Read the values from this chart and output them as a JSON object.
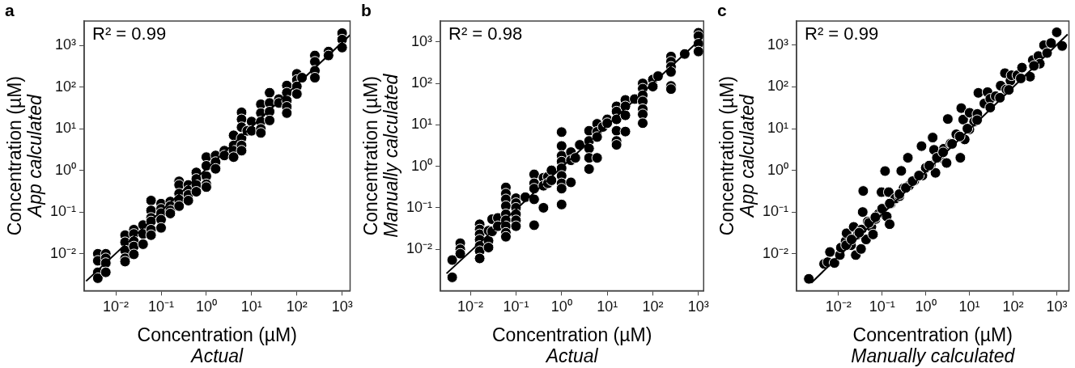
{
  "chart_data": [
    {
      "type": "scatter",
      "title": "a",
      "xlabel": "Concentration (µM)\nActual",
      "ylabel": "Concentration (µM)\nApp calculated",
      "annotations": [
        "R² = 0.99"
      ],
      "log": "xy",
      "legend": false,
      "xlim": [
        0.002,
        1500
      ],
      "ylim": [
        0.0013,
        3900
      ],
      "xticks": [
        {
          "value": 0.01,
          "label": "10⁻²"
        },
        {
          "value": 0.1,
          "label": "10⁻¹"
        },
        {
          "value": 1,
          "label": "10⁰"
        },
        {
          "value": 10,
          "label": "10¹"
        },
        {
          "value": 100,
          "label": "10²"
        },
        {
          "value": 1000,
          "label": "10³"
        }
      ],
      "yticks": [
        {
          "value": 0.01,
          "label": "10⁻²"
        },
        {
          "value": 0.1,
          "label": "10⁻¹"
        },
        {
          "value": 1,
          "label": "10⁰"
        },
        {
          "value": 10,
          "label": "10¹"
        },
        {
          "value": 100,
          "label": "10²"
        },
        {
          "value": 1000,
          "label": "10³"
        }
      ],
      "series": [
        {
          "marker": "circle",
          "color": "#000000",
          "x": [
            0.004,
            0.004,
            0.004,
            0.004,
            0.006,
            0.006,
            0.006,
            0.006,
            0.016,
            0.016,
            0.016,
            0.016,
            0.016,
            0.025,
            0.025,
            0.025,
            0.025,
            0.025,
            0.04,
            0.04,
            0.04,
            0.06,
            0.06,
            0.06,
            0.06,
            0.06,
            0.06,
            0.1,
            0.1,
            0.1,
            0.1,
            0.1,
            0.16,
            0.16,
            0.16,
            0.16,
            0.25,
            0.25,
            0.25,
            0.25,
            0.25,
            0.4,
            0.4,
            0.4,
            0.4,
            0.6,
            0.6,
            0.6,
            0.6,
            1,
            1,
            1,
            1,
            1,
            1.6,
            1.6,
            1.6,
            2.5,
            2.5,
            4,
            4,
            4,
            4,
            6,
            6,
            6,
            6,
            6,
            6,
            8,
            10,
            10,
            16,
            16,
            16,
            16,
            16,
            25,
            25,
            25,
            25,
            40,
            40,
            60,
            60,
            60,
            60,
            60,
            100,
            100,
            100,
            100,
            130,
            250,
            250,
            250,
            250,
            500,
            500,
            1000,
            1000,
            1000
          ],
          "values": [
            0.01,
            0.0068,
            0.0036,
            0.0026,
            0.01,
            0.0078,
            0.006,
            0.0036,
            0.028,
            0.019,
            0.012,
            0.0078,
            0.0065,
            0.038,
            0.03,
            0.02,
            0.015,
            0.0097,
            0.049,
            0.03,
            0.017,
            0.19,
            0.11,
            0.073,
            0.06,
            0.038,
            0.028,
            0.16,
            0.12,
            0.095,
            0.066,
            0.042,
            0.18,
            0.14,
            0.11,
            0.093,
            0.55,
            0.45,
            0.28,
            0.2,
            0.14,
            0.45,
            0.33,
            0.26,
            0.19,
            0.9,
            0.63,
            0.45,
            0.31,
            2.1,
            1.3,
            0.73,
            0.47,
            0.4,
            2.3,
            1.6,
            1.1,
            3,
            2.3,
            7,
            4,
            3,
            2.1,
            25,
            17,
            11,
            6,
            4,
            3,
            9,
            15,
            9,
            39,
            24,
            15,
            10,
            8,
            74,
            42,
            26,
            16,
            52,
            42,
            110,
            74,
            48,
            34,
            24,
            210,
            150,
            105,
            69,
            170,
            580,
            410,
            250,
            170,
            720,
            580,
            2000,
            1400,
            900
          ]
        },
        {
          "type": "line",
          "color": "#000000",
          "x": [
            0.0022,
            1500
          ],
          "values": [
            0.0022,
            1800
          ]
        }
      ]
    },
    {
      "type": "scatter",
      "title": "b",
      "xlabel": "Concentration (µM)\nActual",
      "ylabel": "Concentration (µM)\nManually calculated",
      "annotations": [
        "R² = 0.98"
      ],
      "log": "xy",
      "legend": false,
      "xlim": [
        0.0022,
        1300
      ],
      "ylim": [
        0.001,
        3200
      ],
      "xticks": [
        {
          "value": 0.01,
          "label": "10⁻²"
        },
        {
          "value": 0.1,
          "label": "10⁻¹"
        },
        {
          "value": 1,
          "label": "10⁰"
        },
        {
          "value": 10,
          "label": "10¹"
        },
        {
          "value": 100,
          "label": "10²"
        },
        {
          "value": 1000,
          "label": "10³"
        }
      ],
      "yticks": [
        {
          "value": 0.01,
          "label": "10⁻²"
        },
        {
          "value": 0.1,
          "label": "10⁻¹"
        },
        {
          "value": 1,
          "label": "10⁰"
        },
        {
          "value": 10,
          "label": "10¹"
        },
        {
          "value": 100,
          "label": "10²"
        },
        {
          "value": 1000,
          "label": "10³"
        }
      ],
      "series": [
        {
          "marker": "circle",
          "color": "#000000",
          "x": [
            0.004,
            0.004,
            0.006,
            0.006,
            0.006,
            0.016,
            0.016,
            0.016,
            0.016,
            0.016,
            0.016,
            0.016,
            0.025,
            0.025,
            0.025,
            0.03,
            0.03,
            0.04,
            0.04,
            0.06,
            0.06,
            0.06,
            0.06,
            0.06,
            0.06,
            0.06,
            0.06,
            0.06,
            0.1,
            0.1,
            0.1,
            0.1,
            0.1,
            0.1,
            0.16,
            0.25,
            0.25,
            0.25,
            0.25,
            0.25,
            0.4,
            0.4,
            0.4,
            0.5,
            0.5,
            0.6,
            0.6,
            1,
            1,
            1,
            1,
            1,
            1,
            1,
            1,
            1,
            1.6,
            1.6,
            1.6,
            2,
            2.5,
            4,
            4,
            4,
            4,
            4,
            6,
            6,
            6,
            6,
            8,
            10,
            10,
            16,
            16,
            16,
            16,
            16,
            16,
            25,
            25,
            25,
            25,
            40,
            60,
            60,
            60,
            60,
            60,
            60,
            60,
            100,
            100,
            130,
            250,
            250,
            250,
            250,
            250,
            250,
            500,
            1000,
            1000,
            1000,
            1000
          ],
          "values": [
            0.0055,
            0.0021,
            0.014,
            0.01,
            0.0078,
            0.04,
            0.03,
            0.023,
            0.017,
            0.012,
            0.009,
            0.006,
            0.028,
            0.016,
            0.011,
            0.053,
            0.027,
            0.057,
            0.036,
            0.31,
            0.22,
            0.16,
            0.11,
            0.07,
            0.05,
            0.036,
            0.025,
            0.02,
            0.17,
            0.13,
            0.1,
            0.07,
            0.05,
            0.036,
            0.18,
            0.64,
            0.39,
            0.29,
            0.16,
            0.038,
            0.53,
            0.34,
            0.1,
            0.56,
            0.39,
            0.8,
            0.46,
            6.7,
            3.1,
            1.8,
            1.3,
            0.9,
            0.59,
            0.39,
            0.29,
            0.12,
            2.2,
            1.4,
            0.41,
            1.6,
            3.3,
            7.2,
            4.1,
            2.7,
            1.6,
            0.86,
            10.6,
            6.8,
            5.1,
            1.6,
            8.9,
            13.6,
            11,
            28,
            21,
            13.6,
            7.2,
            4.1,
            3.3,
            40,
            28,
            17,
            6.9,
            42,
            100,
            75,
            52,
            37,
            24,
            18,
            11,
            124,
            84,
            150,
            445,
            335,
            252,
            190,
            87,
            73,
            513,
            1670,
            1390,
            905,
            590
          ]
        },
        {
          "type": "line",
          "color": "#000000",
          "x": [
            0.003,
            1230
          ],
          "values": [
            0.0026,
            1290
          ]
        }
      ]
    },
    {
      "type": "scatter",
      "title": "c",
      "xlabel": "Concentration (µM)\nManually calculated",
      "ylabel": "Concentration (µM)\nApp calculated",
      "annotations": [
        "R² = 0.99"
      ],
      "log": "xy",
      "legend": false,
      "xlim": [
        0.0011,
        1900
      ],
      "ylim": [
        0.0013,
        3800
      ],
      "xticks": [
        {
          "value": 0.01,
          "label": "10⁻²"
        },
        {
          "value": 0.1,
          "label": "10⁻¹"
        },
        {
          "value": 1,
          "label": "10⁰"
        },
        {
          "value": 10,
          "label": "10¹"
        },
        {
          "value": 100,
          "label": "10²"
        },
        {
          "value": 1000,
          "label": "10³"
        }
      ],
      "yticks": [
        {
          "value": 0.01,
          "label": "10⁻²"
        },
        {
          "value": 0.1,
          "label": "10⁻¹"
        },
        {
          "value": 1,
          "label": "10⁰"
        },
        {
          "value": 10,
          "label": "10¹"
        },
        {
          "value": 100,
          "label": "10²"
        },
        {
          "value": 1000,
          "label": "10³"
        }
      ],
      "series": [
        {
          "marker": "circle",
          "color": "#000000",
          "x": [
            0.0021,
            0.0047,
            0.0057,
            0.0064,
            0.0081,
            0.0108,
            0.0114,
            0.0146,
            0.0154,
            0.0195,
            0.0224,
            0.025,
            0.0276,
            0.033,
            0.034,
            0.037,
            0.036,
            0.043,
            0.047,
            0.057,
            0.062,
            0.071,
            0.083,
            0.097,
            0.1,
            0.117,
            0.128,
            0.142,
            0.149,
            0.16,
            0.2,
            0.25,
            0.275,
            0.31,
            0.39,
            0.415,
            0.55,
            0.8,
            0.84,
            1,
            1.3,
            1.44,
            1.55,
            1.67,
            2.08,
            2.6,
            3,
            3.2,
            3.7,
            5,
            6.2,
            6.5,
            7.2,
            7.8,
            10,
            10.1,
            12.8,
            15.2,
            16,
            22,
            26,
            30,
            40,
            52,
            65,
            70,
            87,
            92,
            125,
            160,
            245,
            283,
            380,
            410,
            510,
            740,
            1000,
            1330,
            0.015,
            0.02,
            0.03,
            0.05,
            0.07,
            0.15,
            0.25,
            0.35,
            0.5,
            0.7,
            1.2,
            1.8,
            2.5,
            4,
            6,
            9,
            15,
            30,
            50,
            80,
            150,
            300,
            600
          ],
          "values": [
            0.0025,
            0.0057,
            0.0063,
            0.011,
            0.006,
            0.0093,
            0.014,
            0.02,
            0.031,
            0.016,
            0.044,
            0.0093,
            0.029,
            0.013,
            0.038,
            0.32,
            0.1,
            0.022,
            0.059,
            0.044,
            0.029,
            0.068,
            0.09,
            0.3,
            0.12,
            0.96,
            0.078,
            0.3,
            0.051,
            0.16,
            0.21,
            0.24,
            0.97,
            0.37,
            2,
            0.43,
            0.57,
            3.8,
            0.75,
            1.15,
            1.33,
            6.1,
            3.1,
            0.87,
            2,
            3.3,
            1.5,
            17,
            4.4,
            7.3,
            2,
            31,
            16.5,
            5.5,
            9.6,
            24,
            14.7,
            22.5,
            72,
            40,
            75,
            52,
            60,
            107,
            214,
            87,
            141,
            190,
            190,
            290,
            176,
            440,
            550,
            360,
            1000,
            1130,
            2040,
            960,
            0.016,
            0.022,
            0.032,
            0.055,
            0.075,
            0.16,
            0.27,
            0.38,
            0.55,
            0.75,
            1.3,
            2,
            2.7,
            4.3,
            6.5,
            10,
            16,
            32,
            55,
            85,
            160,
            320,
            650
          ]
        },
        {
          "type": "line",
          "color": "#000000",
          "x": [
            0.0024,
            1770
          ],
          "values": [
            0.002,
            1820
          ]
        }
      ]
    }
  ]
}
